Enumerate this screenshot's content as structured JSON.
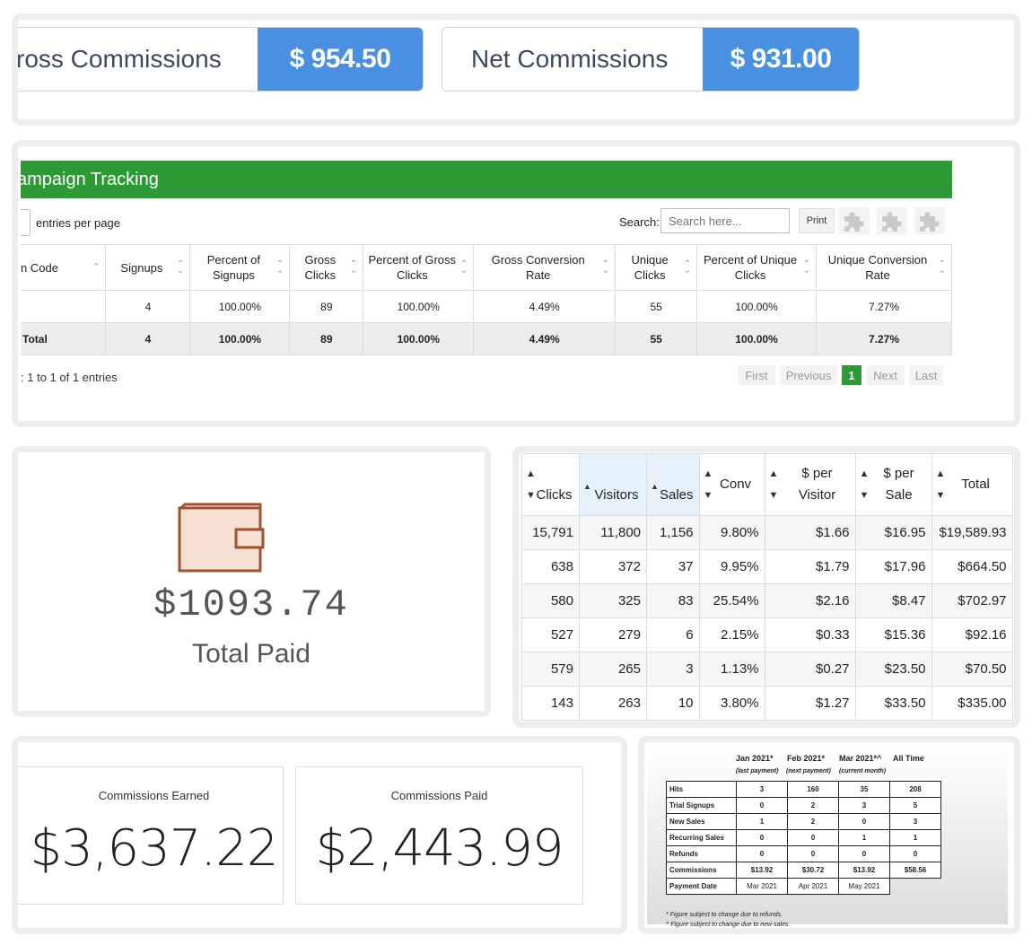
{
  "commissions": {
    "gross_label": "ross Commissions",
    "gross_value": "$ 954.50",
    "net_label": "Net Commissions",
    "net_value": "$ 931.00"
  },
  "campaign": {
    "title": "ampaign Tracking",
    "entries_label": "entries per page",
    "search_label": "Search:",
    "search_placeholder": "Search here...",
    "print_label": "Print",
    "columns": [
      "n Code",
      "Signups",
      "Percent of Signups",
      "Gross Clicks",
      "Percent of Gross Clicks",
      "Gross Conversion Rate",
      "Unique Clicks",
      "Percent of Unique Clicks",
      "Unique Conversion Rate"
    ],
    "rows": [
      [
        "",
        "4",
        "100.00%",
        "89",
        "100.00%",
        "4.49%",
        "55",
        "100.00%",
        "7.27%"
      ]
    ],
    "total_row": [
      "Total",
      "4",
      "100.00%",
      "89",
      "100.00%",
      "4.49%",
      "55",
      "100.00%",
      "7.27%"
    ],
    "showing": "1 to 1 of 1 entries",
    "pager": [
      "First",
      "Previous",
      "1",
      "Next",
      "Last"
    ]
  },
  "total_paid": {
    "value": "$1093.74",
    "label": "Total Paid"
  },
  "stats_table": {
    "columns": [
      "Clicks",
      "Visitors",
      "Sales",
      "Conv",
      "$ per Visitor",
      "$ per Sale",
      "Total"
    ],
    "rows": [
      [
        "15,791",
        "11,800",
        "1,156",
        "9.80%",
        "$1.66",
        "$16.95",
        "$19,589.93"
      ],
      [
        "638",
        "372",
        "37",
        "9.95%",
        "$1.79",
        "$17.96",
        "$664.50"
      ],
      [
        "580",
        "325",
        "83",
        "25.54%",
        "$2.16",
        "$8.47",
        "$702.97"
      ],
      [
        "527",
        "279",
        "6",
        "2.15%",
        "$0.33",
        "$15.36",
        "$92.16"
      ],
      [
        "579",
        "265",
        "3",
        "1.13%",
        "$0.27",
        "$23.50",
        "$70.50"
      ],
      [
        "143",
        "263",
        "10",
        "3.80%",
        "$1.27",
        "$33.50",
        "$335.00"
      ]
    ]
  },
  "earned_paid": {
    "earned_label": "Commissions Earned",
    "earned_value": "$3,637.22",
    "paid_label": "Commissions Paid",
    "paid_value": "$2,443.99"
  },
  "monthly": {
    "headers": [
      "Jan 2021*",
      "Feb 2021*",
      "Mar 2021*^",
      "All Time"
    ],
    "subheaders": [
      "(last payment)",
      "(next payment)",
      "(current month)"
    ],
    "rows": [
      [
        "Hits",
        "3",
        "160",
        "35",
        "208"
      ],
      [
        "Trial Signups",
        "0",
        "2",
        "3",
        "5"
      ],
      [
        "New Sales",
        "1",
        "2",
        "0",
        "3"
      ],
      [
        "Recurring Sales",
        "0",
        "0",
        "1",
        "1"
      ],
      [
        "Refunds",
        "0",
        "0",
        "0",
        "0"
      ],
      [
        "Commissions",
        "$13.92",
        "$30.72",
        "$13.92",
        "$58.56"
      ]
    ],
    "payment_row": [
      "Payment Date",
      "Mar 2021",
      "Apr 2021",
      "May 2021"
    ],
    "notes": [
      "* Figure subject to change due to refunds.",
      "^ Figure subject to change due to new sales."
    ]
  }
}
